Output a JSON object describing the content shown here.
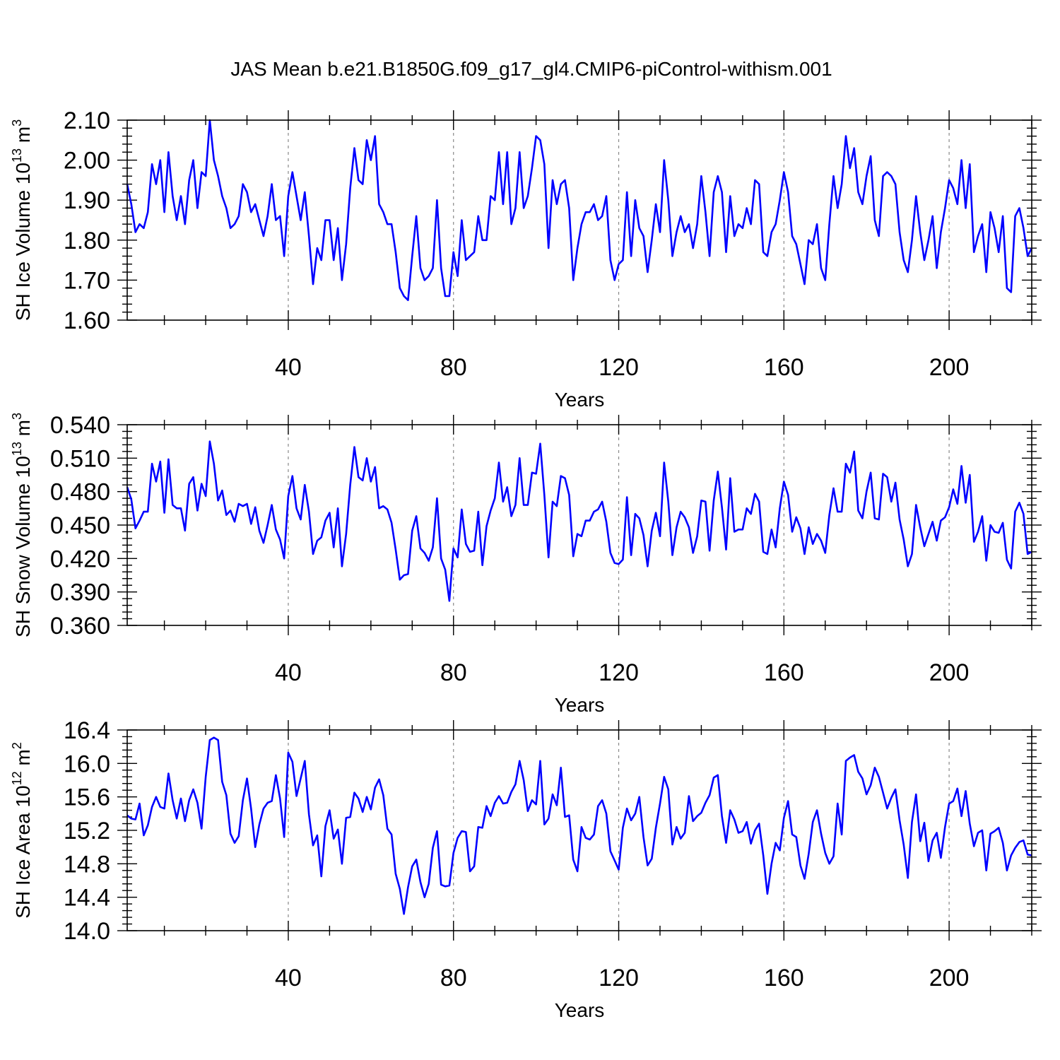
{
  "title": "JAS Mean b.e21.B1850G.f09_g17_gl4.CMIP6-piControl-withism.001",
  "x_ticks": [
    "40",
    "80",
    "120",
    "160",
    "200"
  ],
  "chart_data": [
    {
      "type": "line",
      "title": "JAS Mean b.e21.B1850G.f09_g17_gl4.CMIP6-piControl-withism.001",
      "xlabel": "Years",
      "ylabel_main": "SH Ice Volume 10",
      "ylabel_sup": "13",
      "ylabel_unit": " m",
      "ylabel_unit_sup": "3",
      "ylim": [
        1.6,
        2.1
      ],
      "xlim": [
        1,
        220
      ],
      "y_ticks": [
        "1.60",
        "1.70",
        "1.80",
        "1.90",
        "2.00",
        "2.10"
      ],
      "x_ticks": [
        40,
        80,
        120,
        160,
        200
      ],
      "color": "#0000ff",
      "series": [
        {
          "name": "SH Ice Volume",
          "x_start": 1,
          "values": [
            1.94,
            1.89,
            1.82,
            1.84,
            1.83,
            1.87,
            1.99,
            1.94,
            2.0,
            1.87,
            2.02,
            1.91,
            1.85,
            1.91,
            1.84,
            1.95,
            2.0,
            1.88,
            1.97,
            1.96,
            2.1,
            2.0,
            1.96,
            1.91,
            1.88,
            1.83,
            1.84,
            1.86,
            1.94,
            1.92,
            1.87,
            1.89,
            1.85,
            1.81,
            1.86,
            1.94,
            1.85,
            1.86,
            1.76,
            1.91,
            1.97,
            1.91,
            1.85,
            1.92,
            1.81,
            1.69,
            1.78,
            1.75,
            1.85,
            1.85,
            1.75,
            1.83,
            1.7,
            1.79,
            1.93,
            2.03,
            1.95,
            1.94,
            2.05,
            2.0,
            2.06,
            1.89,
            1.87,
            1.84,
            1.84,
            1.77,
            1.68,
            1.66,
            1.65,
            1.76,
            1.86,
            1.73,
            1.7,
            1.71,
            1.73,
            1.9,
            1.73,
            1.66,
            1.66,
            1.77,
            1.71,
            1.85,
            1.75,
            1.76,
            1.77,
            1.86,
            1.8,
            1.8,
            1.91,
            1.9,
            2.02,
            1.89,
            2.02,
            1.84,
            1.88,
            2.02,
            1.88,
            1.91,
            1.98,
            2.06,
            2.05,
            1.99,
            1.78,
            1.95,
            1.89,
            1.94,
            1.95,
            1.88,
            1.7,
            1.78,
            1.84,
            1.87,
            1.87,
            1.89,
            1.85,
            1.86,
            1.91,
            1.75,
            1.7,
            1.74,
            1.75,
            1.92,
            1.76,
            1.9,
            1.83,
            1.81,
            1.72,
            1.8,
            1.89,
            1.82,
            2.0,
            1.9,
            1.76,
            1.82,
            1.86,
            1.82,
            1.84,
            1.78,
            1.84,
            1.96,
            1.87,
            1.76,
            1.92,
            1.96,
            1.92,
            1.77,
            1.91,
            1.81,
            1.84,
            1.83,
            1.88,
            1.84,
            1.95,
            1.94,
            1.77,
            1.76,
            1.82,
            1.84,
            1.9,
            1.97,
            1.92,
            1.81,
            1.79,
            1.74,
            1.69,
            1.8,
            1.79,
            1.84,
            1.73,
            1.7,
            1.84,
            1.96,
            1.88,
            1.94,
            2.06,
            1.98,
            2.03,
            1.92,
            1.89,
            1.96,
            2.01,
            1.85,
            1.81,
            1.96,
            1.97,
            1.96,
            1.94,
            1.82,
            1.75,
            1.72,
            1.8,
            1.91,
            1.82,
            1.75,
            1.8,
            1.86,
            1.73,
            1.82,
            1.88,
            1.95,
            1.93,
            1.89,
            2.0,
            1.88,
            1.99,
            1.77,
            1.81,
            1.84,
            1.72,
            1.87,
            1.83,
            1.77,
            1.86,
            1.68,
            1.67,
            1.86,
            1.88,
            1.83,
            1.76,
            1.78
          ]
        }
      ]
    },
    {
      "type": "line",
      "xlabel": "Years",
      "ylabel_main": "SH Snow Volume 10",
      "ylabel_sup": "13",
      "ylabel_unit": " m",
      "ylabel_unit_sup": "3",
      "ylim": [
        0.36,
        0.54
      ],
      "xlim": [
        1,
        220
      ],
      "y_ticks": [
        "0.360",
        "0.390",
        "0.420",
        "0.450",
        "0.480",
        "0.510",
        "0.540"
      ],
      "x_ticks": [
        40,
        80,
        120,
        160,
        200
      ],
      "color": "#0000ff",
      "series": [
        {
          "name": "SH Snow Volume",
          "x_start": 1,
          "values": [
            0.484,
            0.473,
            0.447,
            0.454,
            0.462,
            0.462,
            0.505,
            0.489,
            0.507,
            0.461,
            0.509,
            0.468,
            0.465,
            0.465,
            0.445,
            0.487,
            0.493,
            0.463,
            0.487,
            0.476,
            0.525,
            0.505,
            0.472,
            0.481,
            0.459,
            0.463,
            0.453,
            0.469,
            0.467,
            0.469,
            0.451,
            0.466,
            0.445,
            0.434,
            0.45,
            0.468,
            0.446,
            0.437,
            0.42,
            0.476,
            0.494,
            0.465,
            0.455,
            0.486,
            0.462,
            0.424,
            0.436,
            0.439,
            0.454,
            0.461,
            0.43,
            0.465,
            0.413,
            0.442,
            0.486,
            0.52,
            0.493,
            0.49,
            0.51,
            0.489,
            0.502,
            0.465,
            0.467,
            0.464,
            0.452,
            0.428,
            0.401,
            0.405,
            0.406,
            0.445,
            0.458,
            0.429,
            0.425,
            0.418,
            0.43,
            0.474,
            0.42,
            0.41,
            0.382,
            0.429,
            0.421,
            0.464,
            0.433,
            0.426,
            0.427,
            0.462,
            0.414,
            0.449,
            0.463,
            0.474,
            0.506,
            0.471,
            0.484,
            0.458,
            0.468,
            0.51,
            0.468,
            0.468,
            0.497,
            0.496,
            0.523,
            0.477,
            0.421,
            0.471,
            0.467,
            0.494,
            0.492,
            0.477,
            0.422,
            0.442,
            0.44,
            0.454,
            0.454,
            0.462,
            0.464,
            0.471,
            0.453,
            0.425,
            0.416,
            0.415,
            0.419,
            0.475,
            0.423,
            0.46,
            0.456,
            0.441,
            0.413,
            0.445,
            0.461,
            0.44,
            0.506,
            0.471,
            0.423,
            0.448,
            0.462,
            0.457,
            0.448,
            0.425,
            0.44,
            0.472,
            0.471,
            0.427,
            0.472,
            0.498,
            0.466,
            0.428,
            0.492,
            0.444,
            0.446,
            0.446,
            0.465,
            0.46,
            0.478,
            0.471,
            0.426,
            0.424,
            0.446,
            0.43,
            0.465,
            0.489,
            0.477,
            0.444,
            0.457,
            0.447,
            0.424,
            0.448,
            0.433,
            0.442,
            0.436,
            0.425,
            0.459,
            0.483,
            0.462,
            0.462,
            0.505,
            0.497,
            0.516,
            0.463,
            0.456,
            0.48,
            0.497,
            0.456,
            0.455,
            0.496,
            0.493,
            0.471,
            0.488,
            0.455,
            0.437,
            0.413,
            0.424,
            0.468,
            0.448,
            0.431,
            0.442,
            0.453,
            0.436,
            0.454,
            0.457,
            0.466,
            0.482,
            0.469,
            0.503,
            0.47,
            0.495,
            0.435,
            0.444,
            0.458,
            0.418,
            0.45,
            0.444,
            0.443,
            0.452,
            0.419,
            0.411,
            0.462,
            0.47,
            0.46,
            0.424,
            0.426
          ]
        }
      ]
    },
    {
      "type": "line",
      "xlabel": "Years",
      "ylabel_main": "SH Ice Area 10",
      "ylabel_sup": "12",
      "ylabel_unit": " m",
      "ylabel_unit_sup": "2",
      "ylim": [
        14.0,
        16.4
      ],
      "xlim": [
        1,
        220
      ],
      "y_ticks": [
        "14.0",
        "14.4",
        "14.8",
        "15.2",
        "15.6",
        "16.0",
        "16.4"
      ],
      "x_ticks": [
        40,
        80,
        120,
        160,
        200
      ],
      "color": "#0000ff",
      "series": [
        {
          "name": "SH Ice Area",
          "x_start": 1,
          "values": [
            15.38,
            15.34,
            15.33,
            15.52,
            15.14,
            15.26,
            15.48,
            15.6,
            15.48,
            15.46,
            15.88,
            15.56,
            15.34,
            15.58,
            15.31,
            15.56,
            15.69,
            15.53,
            15.22,
            15.84,
            16.28,
            16.31,
            16.28,
            15.78,
            15.62,
            15.16,
            15.05,
            15.13,
            15.56,
            15.82,
            15.46,
            15.0,
            15.27,
            15.46,
            15.53,
            15.55,
            15.86,
            15.58,
            15.12,
            16.13,
            16.02,
            15.61,
            15.82,
            16.03,
            15.39,
            15.02,
            15.14,
            14.65,
            15.25,
            15.44,
            15.1,
            15.21,
            14.8,
            15.35,
            15.36,
            15.65,
            15.58,
            15.42,
            15.6,
            15.45,
            15.71,
            15.81,
            15.62,
            15.22,
            15.15,
            14.68,
            14.5,
            14.2,
            14.52,
            14.77,
            14.85,
            14.58,
            14.4,
            14.56,
            14.99,
            15.19,
            14.55,
            14.53,
            14.54,
            14.93,
            15.11,
            15.19,
            15.18,
            14.71,
            14.77,
            15.24,
            15.23,
            15.49,
            15.37,
            15.53,
            15.61,
            15.52,
            15.53,
            15.66,
            15.75,
            16.03,
            15.8,
            15.43,
            15.56,
            15.51,
            16.03,
            15.27,
            15.34,
            15.63,
            15.5,
            15.95,
            15.36,
            15.38,
            14.85,
            14.71,
            15.24,
            15.11,
            15.09,
            15.15,
            15.49,
            15.56,
            15.4,
            14.95,
            14.84,
            14.73,
            15.23,
            15.46,
            15.32,
            15.4,
            15.6,
            15.12,
            14.78,
            14.86,
            15.23,
            15.52,
            15.84,
            15.69,
            15.03,
            15.24,
            15.1,
            15.17,
            15.61,
            15.31,
            15.37,
            15.41,
            15.53,
            15.62,
            15.83,
            15.86,
            15.37,
            15.05,
            15.44,
            15.33,
            15.17,
            15.19,
            15.3,
            15.04,
            15.2,
            15.28,
            14.9,
            14.44,
            14.8,
            15.05,
            14.96,
            15.35,
            15.55,
            15.15,
            15.12,
            14.78,
            14.62,
            14.92,
            15.3,
            15.44,
            15.16,
            14.93,
            14.8,
            14.89,
            15.52,
            15.15,
            16.03,
            16.07,
            16.1,
            15.9,
            15.82,
            15.63,
            15.74,
            15.95,
            15.84,
            15.65,
            15.46,
            15.59,
            15.69,
            15.32,
            15.03,
            14.63,
            15.3,
            15.63,
            15.07,
            15.29,
            14.83,
            15.08,
            15.17,
            14.87,
            15.24,
            15.52,
            15.55,
            15.7,
            15.37,
            15.67,
            15.28,
            15.01,
            15.17,
            15.2,
            14.72,
            15.16,
            15.19,
            15.23,
            15.05,
            14.72,
            14.9,
            14.99,
            15.06,
            15.08,
            14.91,
            14.9
          ]
        }
      ]
    }
  ]
}
